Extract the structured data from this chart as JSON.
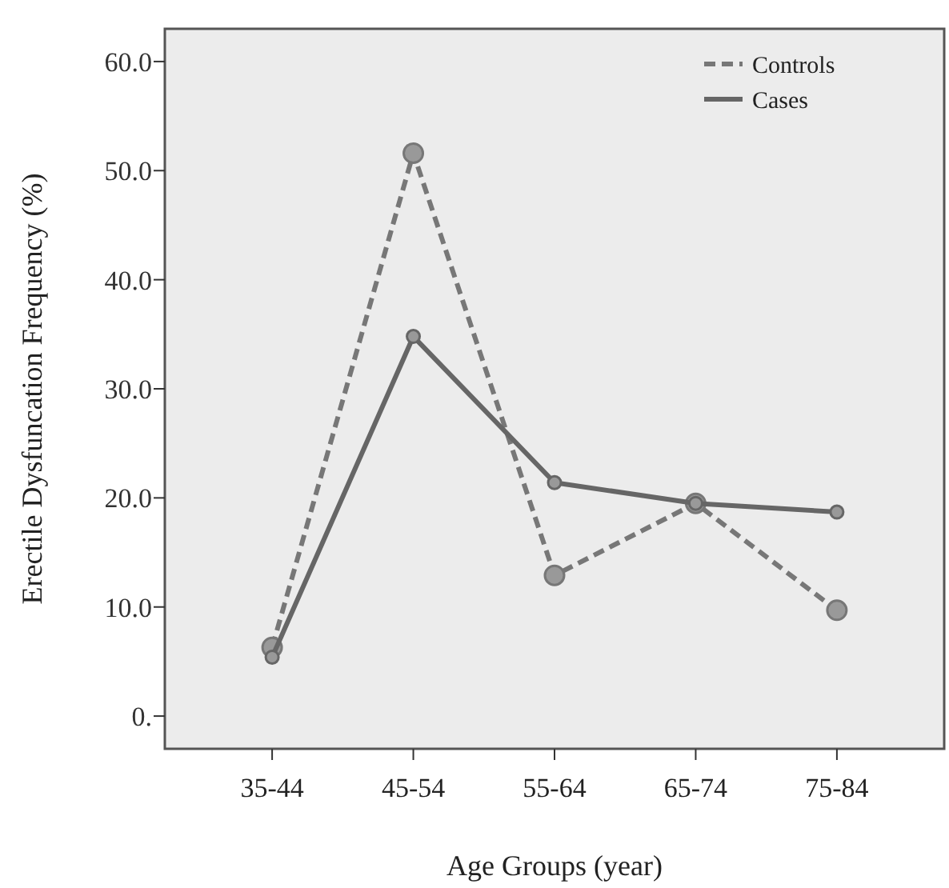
{
  "chart_data": {
    "type": "line",
    "xlabel": "Age Groups (year)",
    "ylabel": "Erectile Dysfuncation Frequency (%)",
    "categories": [
      "35-44",
      "45-54",
      "55-64",
      "65-74",
      "75-84"
    ],
    "series": [
      {
        "name": "Controls",
        "color": "#777777",
        "line_style": "dashed",
        "values": [
          6.3,
          51.6,
          12.9,
          19.5,
          9.7
        ]
      },
      {
        "name": "Cases",
        "color": "#666666",
        "line_style": "solid",
        "values": [
          5.4,
          34.8,
          21.4,
          19.5,
          18.7
        ]
      }
    ],
    "ylim": [
      -3,
      63
    ],
    "yticks": [
      {
        "value": 0,
        "label": "0."
      },
      {
        "value": 10,
        "label": "10.0"
      },
      {
        "value": 20,
        "label": "20.0"
      },
      {
        "value": 30,
        "label": "30.0"
      },
      {
        "value": 40,
        "label": "40.0"
      },
      {
        "value": 50,
        "label": "50.0"
      },
      {
        "value": 60,
        "label": "60.0"
      }
    ],
    "legend": "top right",
    "marker": "circle",
    "grid": false
  }
}
